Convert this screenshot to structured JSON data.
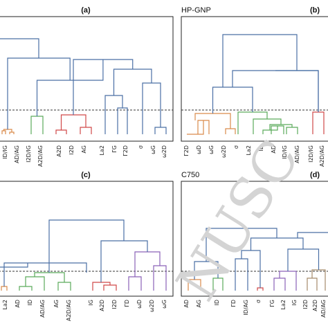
{
  "watermark_text": "NUSC",
  "colors": {
    "blue": "#4a6fa5",
    "orange": "#d98a4a",
    "green": "#5aaa5a",
    "red": "#d04848",
    "purple": "#8a62b8",
    "brown": "#a58a6a"
  },
  "chart_data": [
    {
      "type": "dendrogram",
      "panel_letter": "(a)",
      "title": "",
      "cut_level": 0.35,
      "leaves": [
        {
          "label": "ID/IG",
          "color": "orange"
        },
        {
          "label": "AD/AG",
          "color": "green"
        },
        {
          "label": "I2D/IG",
          "color": "green"
        },
        {
          "label": "A2D/AG",
          "color": "green"
        },
        {
          "label": "A2D",
          "color": "red"
        },
        {
          "label": "I2D",
          "color": "red"
        },
        {
          "label": "AG",
          "color": "red"
        },
        {
          "label": "La2",
          "color": "blue"
        },
        {
          "label": "ΓG",
          "color": "blue"
        },
        {
          "label": "Γ2D",
          "color": "blue"
        },
        {
          "label": "σ",
          "color": "blue"
        },
        {
          "label": "ωG",
          "color": "blue"
        },
        {
          "label": "ω2D",
          "color": "blue"
        }
      ]
    },
    {
      "type": "dendrogram",
      "panel_letter": "(b)",
      "title": "HP-GNP",
      "cut_level": 0.35,
      "leaves": [
        {
          "label": "Γ2D",
          "color": "orange"
        },
        {
          "label": "ωD",
          "color": "orange"
        },
        {
          "label": "ωG",
          "color": "orange"
        },
        {
          "label": "ω2D",
          "color": "orange"
        },
        {
          "label": "σ",
          "color": "green"
        },
        {
          "label": "La2",
          "color": "green"
        },
        {
          "label": "ID",
          "color": "green"
        },
        {
          "label": "AD",
          "color": "green"
        },
        {
          "label": "ID/IG",
          "color": "green"
        },
        {
          "label": "AD/AG",
          "color": "green"
        },
        {
          "label": "I2D/IG",
          "color": "red"
        },
        {
          "label": "A2D/AG",
          "color": "red"
        }
      ]
    },
    {
      "type": "dendrogram",
      "panel_letter": "(c)",
      "title": "",
      "cut_level": 0.35,
      "leaves": [
        {
          "label": "La2",
          "color": "orange"
        },
        {
          "label": "AD",
          "color": "green"
        },
        {
          "label": "ID",
          "color": "green"
        },
        {
          "label": "AD/AG",
          "color": "green"
        },
        {
          "label": "AG",
          "color": "green"
        },
        {
          "label": "A2D/AG",
          "color": "green"
        },
        {
          "label": "IG",
          "color": "red"
        },
        {
          "label": "A2D",
          "color": "red"
        },
        {
          "label": "I2D",
          "color": "red"
        },
        {
          "label": "ΓD",
          "color": "purple"
        },
        {
          "label": "ωD",
          "color": "purple"
        },
        {
          "label": "ω2D",
          "color": "purple"
        },
        {
          "label": "ωG",
          "color": "purple"
        }
      ]
    },
    {
      "type": "dendrogram",
      "panel_letter": "(d)",
      "title": "C750",
      "cut_level": 0.35,
      "leaves": [
        {
          "label": "AD",
          "color": "orange"
        },
        {
          "label": "AG",
          "color": "green"
        },
        {
          "label": "ID",
          "color": "green"
        },
        {
          "label": "ΓD",
          "color": "blue"
        },
        {
          "label": "ID/AG",
          "color": "blue"
        },
        {
          "label": "σ",
          "color": "red"
        },
        {
          "label": "ΓG",
          "color": "purple"
        },
        {
          "label": "La2",
          "color": "purple"
        },
        {
          "label": "IG",
          "color": "purple"
        },
        {
          "label": "I2D",
          "color": "brown"
        },
        {
          "label": "A2D",
          "color": "brown"
        },
        {
          "label": "AD/AG",
          "color": "brown"
        }
      ]
    }
  ]
}
